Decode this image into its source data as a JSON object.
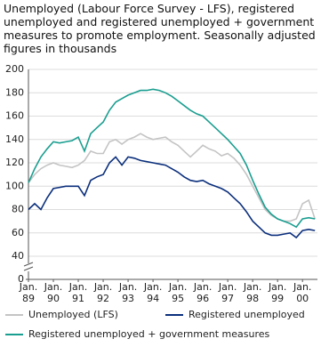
{
  "chart_data": {
    "type": "line",
    "title": "Unemployed (Labour Force Survey - LFS), registered unemployed and registered unemployed + government measures to promote employment. Seasonally adjusted figures in thousands",
    "x": [
      1989,
      1989.25,
      1989.5,
      1989.75,
      1990,
      1990.25,
      1990.5,
      1990.75,
      1991,
      1991.25,
      1991.5,
      1991.75,
      1992,
      1992.25,
      1992.5,
      1992.75,
      1993,
      1993.25,
      1993.5,
      1993.75,
      1994,
      1994.25,
      1994.5,
      1994.75,
      1995,
      1995.25,
      1995.5,
      1995.75,
      1996,
      1996.25,
      1996.5,
      1996.75,
      1997,
      1997.25,
      1997.5,
      1997.75,
      1998,
      1998.25,
      1998.5,
      1998.75,
      1999,
      1999.25,
      1999.5,
      1999.75,
      2000,
      2000.25,
      2000.5
    ],
    "series": [
      {
        "name": "Unemployed (LFS)",
        "color": "#c4c4c4",
        "values": [
          103,
          110,
          115,
          118,
          120,
          118,
          117,
          116,
          118,
          122,
          130,
          128,
          128,
          138,
          140,
          136,
          140,
          142,
          145,
          142,
          140,
          141,
          142,
          138,
          135,
          130,
          125,
          130,
          135,
          132,
          130,
          126,
          128,
          124,
          118,
          110,
          100,
          90,
          80,
          75,
          72,
          70,
          70,
          72,
          85,
          88,
          72
        ]
      },
      {
        "name": "Registered unemployed",
        "color": "#0b2f7c",
        "values": [
          80,
          85,
          80,
          90,
          98,
          99,
          100,
          100,
          100,
          92,
          105,
          108,
          110,
          120,
          125,
          118,
          125,
          124,
          122,
          121,
          120,
          119,
          118,
          115,
          112,
          108,
          105,
          104,
          105,
          102,
          100,
          98,
          95,
          90,
          85,
          78,
          70,
          65,
          60,
          58,
          58,
          59,
          60,
          56,
          62,
          63,
          62
        ]
      },
      {
        "name": "Registered unemployed + government measures",
        "color": "#1a9e90",
        "values": [
          103,
          115,
          125,
          132,
          138,
          137,
          138,
          139,
          142,
          130,
          145,
          150,
          155,
          165,
          172,
          175,
          178,
          180,
          182,
          182,
          183,
          182,
          180,
          177,
          173,
          169,
          165,
          162,
          160,
          155,
          150,
          145,
          140,
          134,
          128,
          118,
          105,
          93,
          82,
          76,
          72,
          70,
          68,
          65,
          72,
          73,
          72
        ]
      }
    ],
    "xlim": [
      1989,
      2000.6
    ],
    "xticks": [
      {
        "value": 1989,
        "label": "Jan. 89"
      },
      {
        "value": 1990,
        "label": "Jan. 90"
      },
      {
        "value": 1991,
        "label": "Jan. 91"
      },
      {
        "value": 1992,
        "label": "Jan. 92"
      },
      {
        "value": 1993,
        "label": "Jan. 93"
      },
      {
        "value": 1994,
        "label": "Jan. 94"
      },
      {
        "value": 1995,
        "label": "Jan. 95"
      },
      {
        "value": 1996,
        "label": "Jan. 96"
      },
      {
        "value": 1997,
        "label": "Jan. 97"
      },
      {
        "value": 1998,
        "label": "Jan. 98"
      },
      {
        "value": 1999,
        "label": "Jan. 99"
      },
      {
        "value": 2000,
        "label": "Jan. 00"
      }
    ],
    "ylim": [
      0,
      200
    ],
    "yticks": [
      0,
      40,
      60,
      80,
      100,
      120,
      140,
      160,
      180,
      200
    ],
    "axis_break": [
      0,
      40
    ],
    "grid": true
  }
}
